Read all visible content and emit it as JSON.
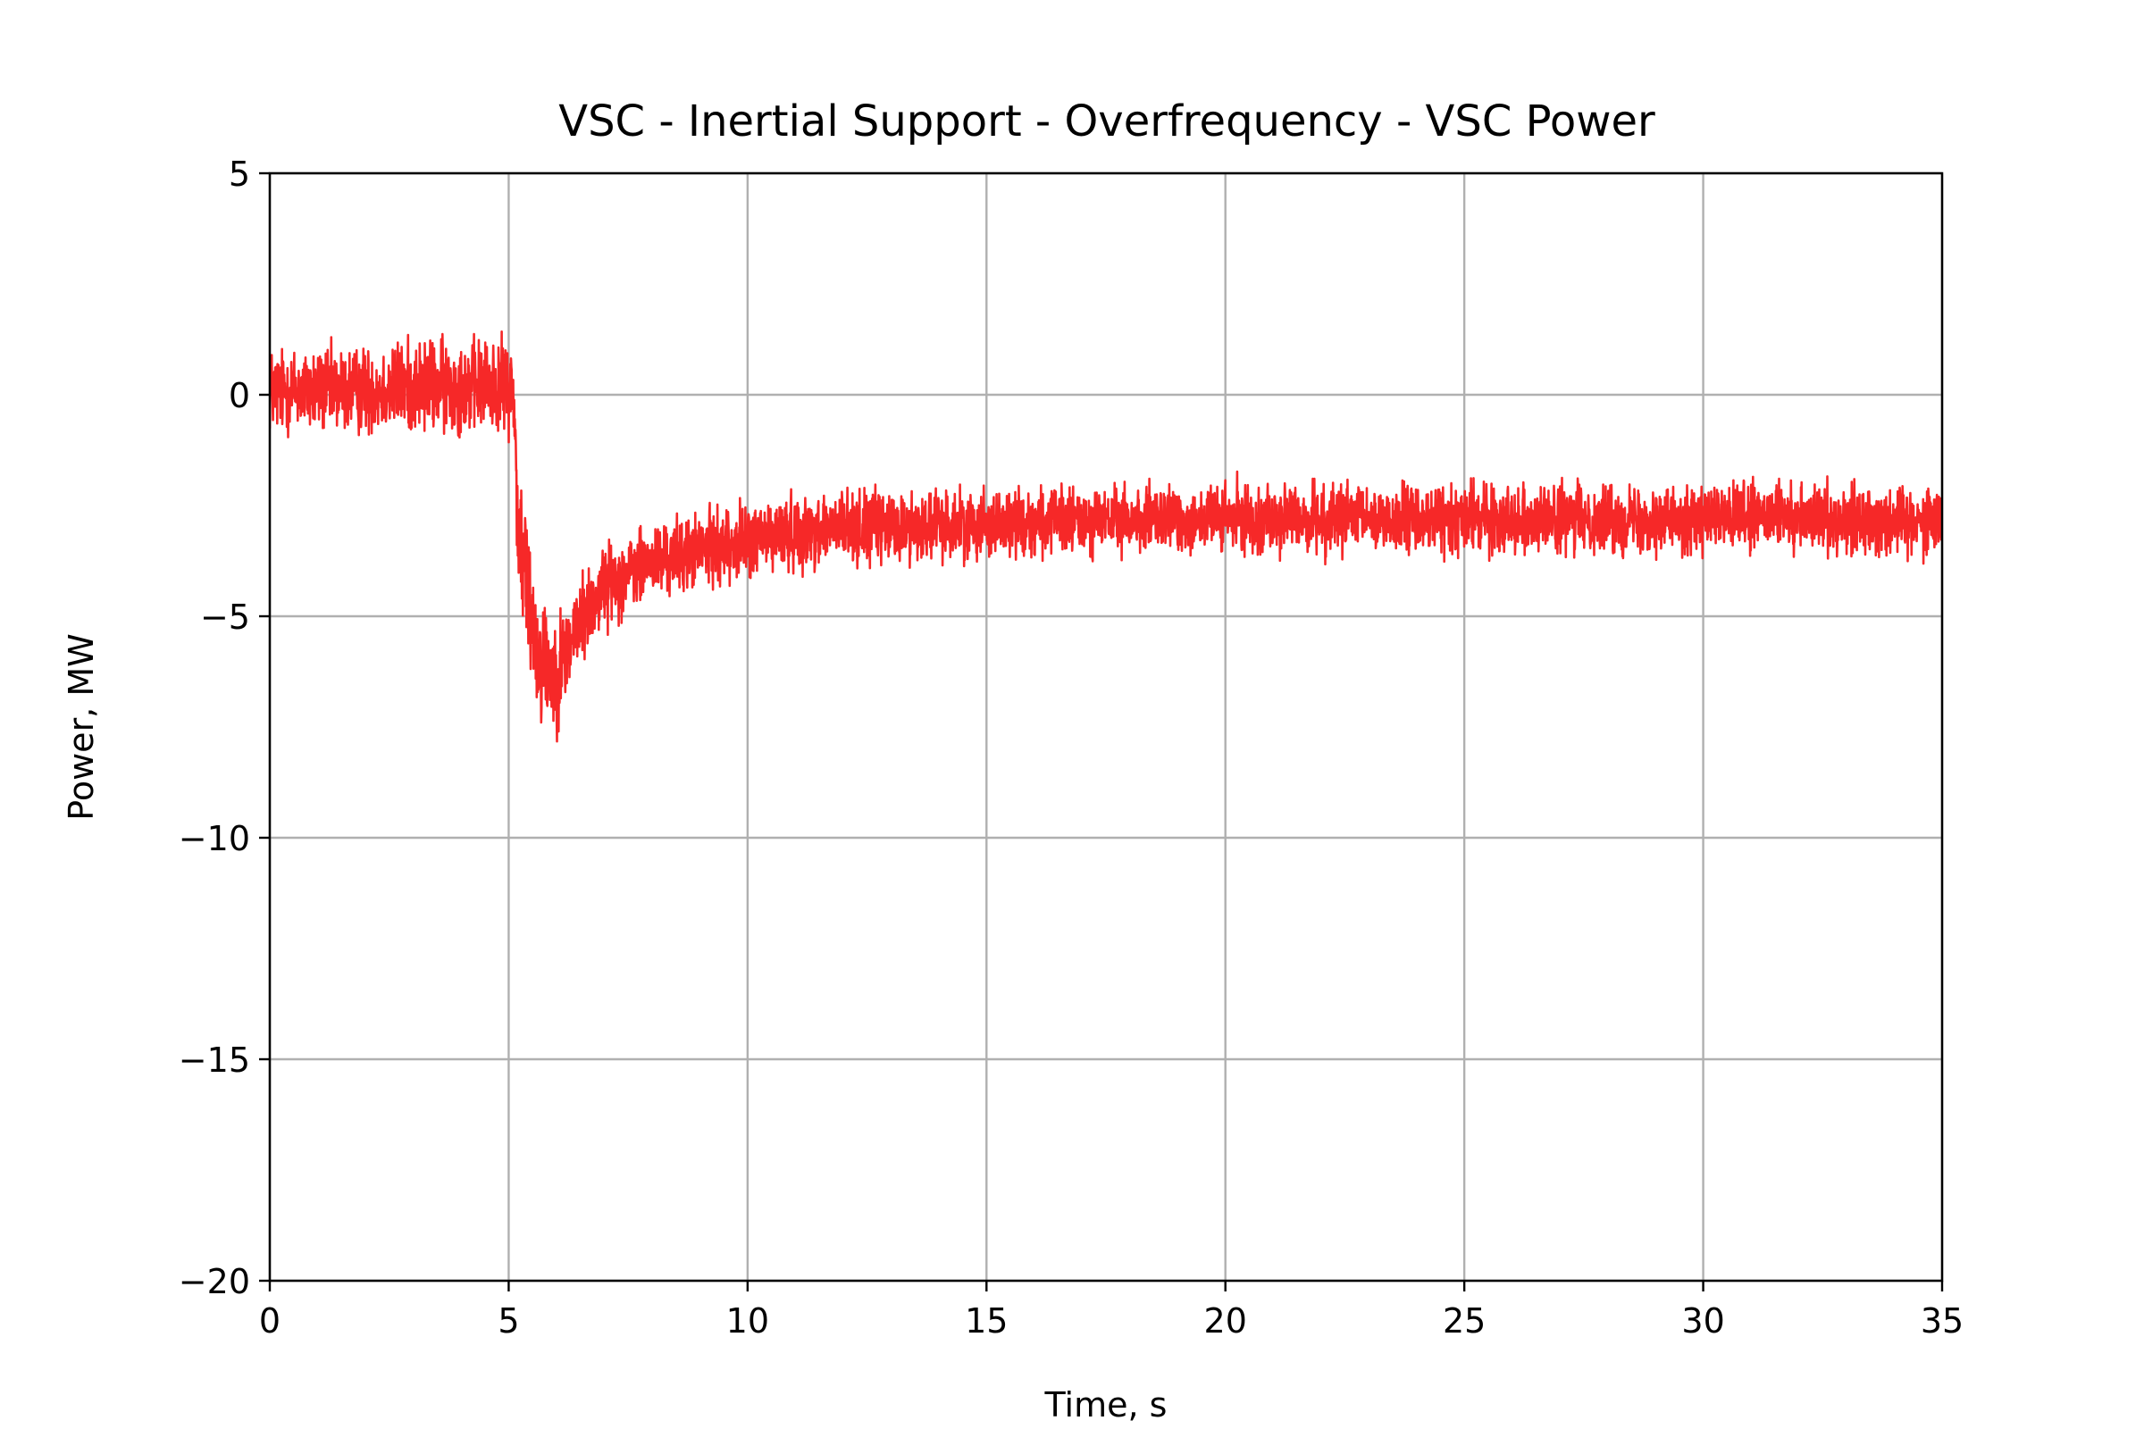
{
  "chart_data": {
    "type": "line",
    "title": "VSC - Inertial Support - Overfrequency - VSC Power",
    "xlabel": "Time, s",
    "ylabel": "Power, MW",
    "xlim": [
      0,
      35
    ],
    "ylim": [
      -20,
      5
    ],
    "xticks": [
      0,
      5,
      10,
      15,
      20,
      25,
      30,
      35
    ],
    "yticks": [
      5,
      0,
      -5,
      -10,
      -15,
      -20
    ],
    "xtick_labels": [
      "0",
      "5",
      "10",
      "15",
      "20",
      "25",
      "30",
      "35"
    ],
    "ytick_labels": [
      "5",
      "0",
      "−5",
      "−10",
      "−15",
      "−20"
    ],
    "grid": true,
    "line_color": "#f62828",
    "series": [
      {
        "x": [
          0,
          1,
          2,
          3,
          4,
          5,
          5.1,
          5.2,
          5.6,
          6.0,
          6.4,
          7,
          8,
          9,
          10,
          11,
          12,
          13,
          15,
          20,
          25,
          30,
          35
        ],
        "y": [
          0.1,
          0.1,
          0.1,
          0.2,
          0.2,
          0.2,
          0.0,
          -3.0,
          -5.8,
          -6.3,
          -5.3,
          -4.3,
          -3.8,
          -3.5,
          -3.3,
          -3.1,
          -3.0,
          -3.0,
          -2.9,
          -2.8,
          -2.8,
          -2.8,
          -2.8
        ],
        "noise_amplitude": [
          1.4,
          1.4,
          1.4,
          1.5,
          1.5,
          1.5,
          1.5,
          2.5,
          2.2,
          1.8,
          1.5,
          1.3,
          1.2,
          1.2,
          1.2,
          1.2,
          1.2,
          1.2,
          1.1,
          1.1,
          1.1,
          1.1,
          1.1
        ]
      }
    ]
  }
}
